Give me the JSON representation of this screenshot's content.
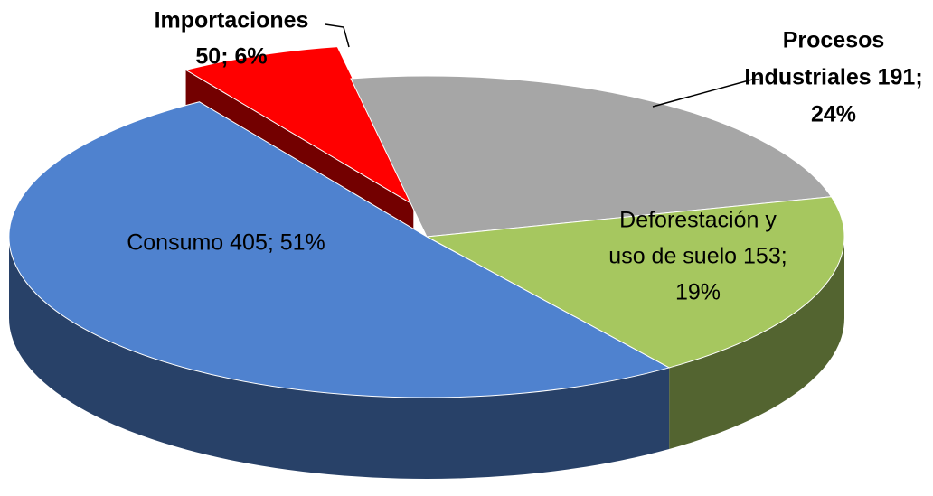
{
  "chart_data": {
    "type": "pie3d",
    "value_labels": [
      [
        "Importaciones",
        "50; 6%"
      ],
      [
        "Procesos",
        "Industriales 191;",
        "24%"
      ],
      [
        "Deforestación y",
        "uso de suelo 153;",
        "19%"
      ],
      [
        "Consumo 405; 51%"
      ]
    ],
    "values": [
      50,
      191,
      153,
      405
    ],
    "colors": [
      "#ff0000",
      "#a6a6a6",
      "#a6c75f",
      "#4f82cf"
    ],
    "exploded": [
      true,
      false,
      false,
      false
    ]
  }
}
